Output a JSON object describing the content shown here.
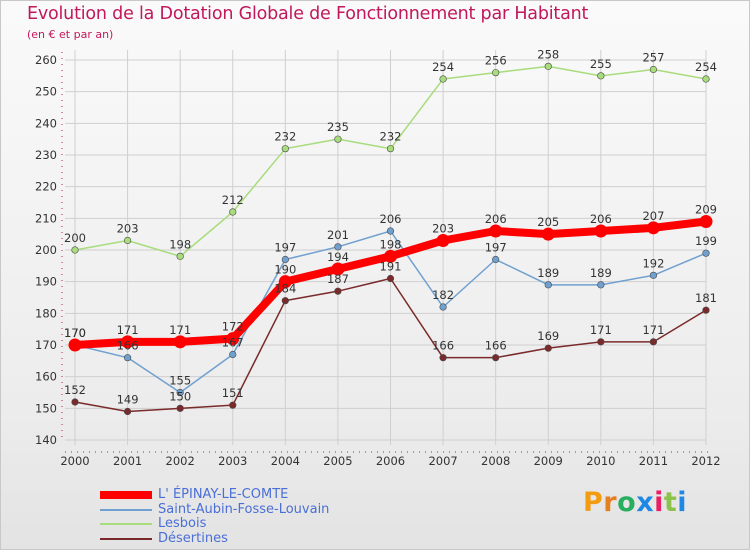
{
  "header": {
    "title": "Evolution de la Dotation Globale de Fonctionnement par Habitant",
    "subtitle": "(en € et par an)"
  },
  "logo": {
    "text": "Proxiti",
    "letter_colors": [
      "#f39c12",
      "#e67e22",
      "#27ae60",
      "#1e88e5",
      "#e91e63",
      "#8bc34a",
      "#1e88e5"
    ]
  },
  "chart_data": {
    "type": "line",
    "title": "Evolution de la Dotation Globale de Fonctionnement par Habitant",
    "subtitle": "(en € et par an)",
    "x": [
      "2000",
      "2001",
      "2002",
      "2003",
      "2004",
      "2005",
      "2006",
      "2007",
      "2008",
      "2009",
      "2010",
      "2011",
      "2012"
    ],
    "ylim": [
      140,
      260
    ],
    "yticks": [
      140,
      150,
      160,
      170,
      180,
      190,
      200,
      210,
      220,
      230,
      240,
      250,
      260
    ],
    "grid": true,
    "legend_placement": "bottom-left",
    "series": [
      {
        "name": "L' ÉPINAY-LE-COMTE",
        "color": "#ff0000",
        "emphasis": true,
        "values": [
          170,
          171,
          171,
          172,
          190,
          194,
          198,
          203,
          206,
          205,
          206,
          207,
          209
        ]
      },
      {
        "name": "Saint-Aubin-Fosse-Louvain",
        "color": "#6fa0cf",
        "emphasis": false,
        "values": [
          170,
          166,
          155,
          167,
          197,
          201,
          206,
          182,
          197,
          189,
          189,
          192,
          199
        ]
      },
      {
        "name": "Lesbois",
        "color": "#a8dc7c",
        "emphasis": false,
        "values": [
          200,
          203,
          198,
          212,
          232,
          235,
          232,
          254,
          256,
          258,
          255,
          257,
          254
        ]
      },
      {
        "name": "Désertines",
        "color": "#7a2a2a",
        "emphasis": false,
        "values": [
          152,
          149,
          150,
          151,
          184,
          187,
          191,
          166,
          166,
          169,
          171,
          171,
          181
        ]
      }
    ]
  }
}
